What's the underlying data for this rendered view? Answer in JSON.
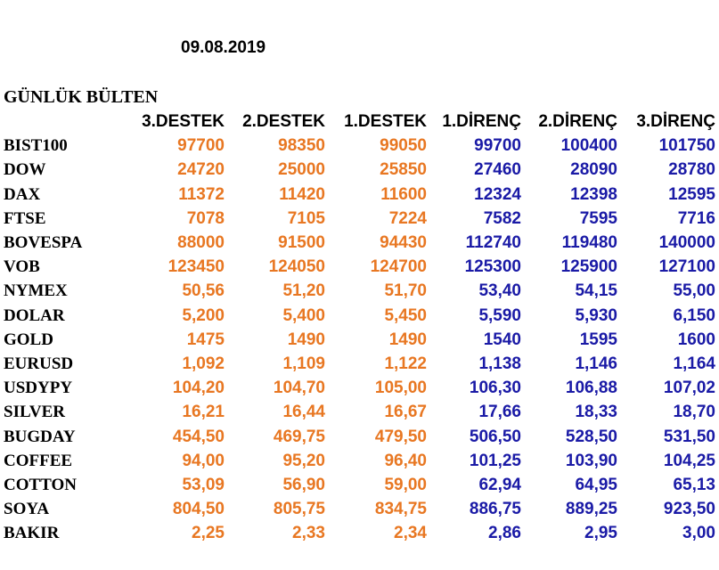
{
  "date": "09.08.2019",
  "title": "GÜNLÜK BÜLTEN",
  "headers": [
    "3.DESTEK",
    "2.DESTEK",
    "1.DESTEK",
    "1.DİRENÇ",
    "2.DİRENÇ",
    "3.DİRENÇ"
  ],
  "colors": {
    "support": "#e87722",
    "resistance": "#1a1aa6"
  },
  "rows": [
    {
      "name": "BIST100",
      "values": [
        "97700",
        "98350",
        "99050",
        "99700",
        "100400",
        "101750"
      ]
    },
    {
      "name": "DOW",
      "values": [
        "24720",
        "25000",
        "25850",
        "27460",
        "28090",
        "28780"
      ]
    },
    {
      "name": "DAX",
      "values": [
        "11372",
        "11420",
        "11600",
        "12324",
        "12398",
        "12595"
      ]
    },
    {
      "name": "FTSE",
      "values": [
        "7078",
        "7105",
        "7224",
        "7582",
        "7595",
        "7716"
      ]
    },
    {
      "name": "BOVESPA",
      "values": [
        "88000",
        "91500",
        "94430",
        "112740",
        "119480",
        "140000"
      ]
    },
    {
      "name": "VOB",
      "values": [
        "123450",
        "124050",
        "124700",
        "125300",
        "125900",
        "127100"
      ]
    },
    {
      "name": "NYMEX",
      "values": [
        "50,56",
        "51,20",
        "51,70",
        "53,40",
        "54,15",
        "55,00"
      ]
    },
    {
      "name": "DOLAR",
      "values": [
        "5,200",
        "5,400",
        "5,450",
        "5,590",
        "5,930",
        "6,150"
      ]
    },
    {
      "name": "GOLD",
      "values": [
        "1475",
        "1490",
        "1490",
        "1540",
        "1595",
        "1600"
      ]
    },
    {
      "name": "EURUSD",
      "values": [
        "1,092",
        "1,109",
        "1,122",
        "1,138",
        "1,146",
        "1,164"
      ]
    },
    {
      "name": "USDYPY",
      "values": [
        "104,20",
        "104,70",
        "105,00",
        "106,30",
        "106,88",
        "107,02"
      ]
    },
    {
      "name": "SILVER",
      "values": [
        "16,21",
        "16,44",
        "16,67",
        "17,66",
        "18,33",
        "18,70"
      ]
    },
    {
      "name": "BUGDAY",
      "values": [
        "454,50",
        "469,75",
        "479,50",
        "506,50",
        "528,50",
        "531,50"
      ]
    },
    {
      "name": "COFFEE",
      "values": [
        "94,00",
        "95,20",
        "96,40",
        "101,25",
        "103,90",
        "104,25"
      ]
    },
    {
      "name": "COTTON",
      "values": [
        "53,09",
        "56,90",
        "59,00",
        "62,94",
        "64,95",
        "65,13"
      ]
    },
    {
      "name": "SOYA",
      "values": [
        "804,50",
        "805,75",
        "834,75",
        "886,75",
        "889,25",
        "923,50"
      ]
    },
    {
      "name": "BAKIR",
      "values": [
        "2,25",
        "2,33",
        "2,34",
        "2,86",
        "2,95",
        "3,00"
      ]
    }
  ]
}
